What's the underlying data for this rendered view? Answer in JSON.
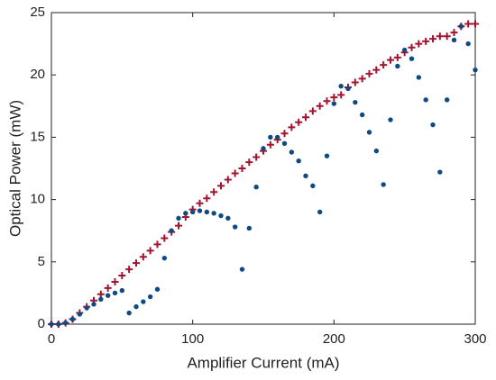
{
  "chart_data": {
    "type": "scatter",
    "xlabel": "Amplifier Current (mA)",
    "ylabel": "Optical Power (mW)",
    "x": [
      0,
      5,
      10,
      15,
      20,
      25,
      30,
      35,
      40,
      45,
      50,
      55,
      60,
      65,
      70,
      75,
      80,
      85,
      90,
      95,
      100,
      105,
      110,
      115,
      120,
      125,
      130,
      135,
      140,
      145,
      150,
      155,
      160,
      165,
      170,
      175,
      180,
      185,
      190,
      195,
      200,
      205,
      210,
      215,
      220,
      225,
      230,
      235,
      240,
      245,
      250,
      255,
      260,
      265,
      270,
      275,
      280,
      285,
      290,
      295,
      300
    ],
    "series": [
      {
        "color": "#a2142f",
        "marker": "plus",
        "values": [
          0,
          0,
          0.1,
          0.4,
          0.9,
          1.4,
          1.9,
          2.4,
          2.9,
          3.4,
          3.9,
          4.4,
          4.9,
          5.4,
          5.9,
          6.4,
          6.9,
          7.4,
          7.9,
          8.6,
          9.2,
          9.7,
          10.1,
          10.6,
          11.1,
          11.6,
          12.1,
          12.5,
          13.0,
          13.4,
          13.9,
          14.4,
          14.8,
          15.3,
          15.8,
          16.2,
          16.6,
          17.1,
          17.5,
          17.9,
          18.2,
          18.4,
          19.0,
          19.4,
          19.7,
          20.1,
          20.4,
          20.8,
          21.2,
          21.4,
          21.8,
          22.2,
          22.5,
          22.7,
          22.9,
          23.1,
          23.1,
          23.4,
          23.9,
          24.1,
          24.1
        ]
      },
      {
        "color": "#0e4a84",
        "marker": "dot",
        "values": [
          0,
          0,
          0.1,
          0.4,
          0.8,
          1.3,
          1.6,
          2.0,
          2.3,
          2.5,
          2.7,
          0.9,
          1.4,
          1.8,
          2.2,
          2.8,
          5.3,
          7.5,
          8.5,
          8.9,
          9.0,
          9.1,
          9.0,
          8.9,
          8.7,
          8.5,
          7.8,
          4.4,
          7.7,
          11.0,
          14.1,
          15.0,
          15.0,
          14.5,
          13.8,
          13.1,
          11.9,
          11.1,
          9.0,
          13.5,
          17.7,
          19.1,
          18.9,
          17.8,
          16.8,
          15.4,
          13.9,
          11.2,
          16.4,
          20.7,
          22.0,
          21.3,
          19.8,
          18.0,
          16.0,
          12.2,
          18.0,
          22.8,
          23.9,
          22.5,
          20.4
        ]
      }
    ],
    "xlim": [
      0,
      300
    ],
    "xticks": [
      0,
      100,
      200,
      300
    ],
    "ylim": [
      0,
      25
    ],
    "yticks": [
      0,
      5,
      10,
      15,
      20,
      25
    ]
  }
}
